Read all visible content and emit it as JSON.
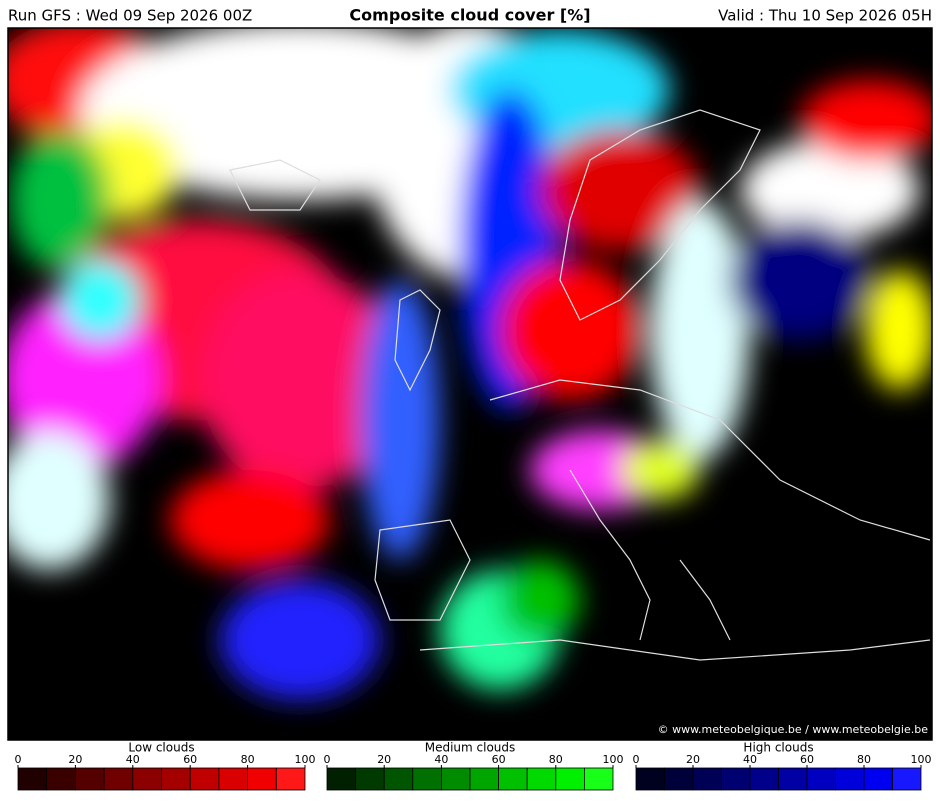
{
  "header": {
    "left": "Run GFS : Wed 09 Sep 2026 00Z",
    "title": "Composite cloud cover [%]",
    "right": "Valid : Thu 10 Sep 2026 05H"
  },
  "credit": "© www.meteobelgique.be / www.meteobelgie.be",
  "legends": [
    {
      "title": "Low clouds",
      "ticks": [
        0,
        20,
        40,
        60,
        80,
        100
      ],
      "colors": [
        "#200000",
        "#3a0000",
        "#550000",
        "#700000",
        "#8b0000",
        "#a50000",
        "#c00000",
        "#da0000",
        "#f00000",
        "#ff1818"
      ]
    },
    {
      "title": "Medium clouds",
      "ticks": [
        0,
        20,
        40,
        60,
        80,
        100
      ],
      "colors": [
        "#002000",
        "#003a00",
        "#005500",
        "#007000",
        "#008b00",
        "#00a500",
        "#00c000",
        "#00da00",
        "#00f000",
        "#18ff18"
      ]
    },
    {
      "title": "High clouds",
      "ticks": [
        0,
        20,
        40,
        60,
        80,
        100
      ],
      "colors": [
        "#000020",
        "#00003a",
        "#000055",
        "#000070",
        "#00008b",
        "#0000a5",
        "#0000c0",
        "#0000da",
        "#0000f0",
        "#1818ff"
      ]
    }
  ]
}
